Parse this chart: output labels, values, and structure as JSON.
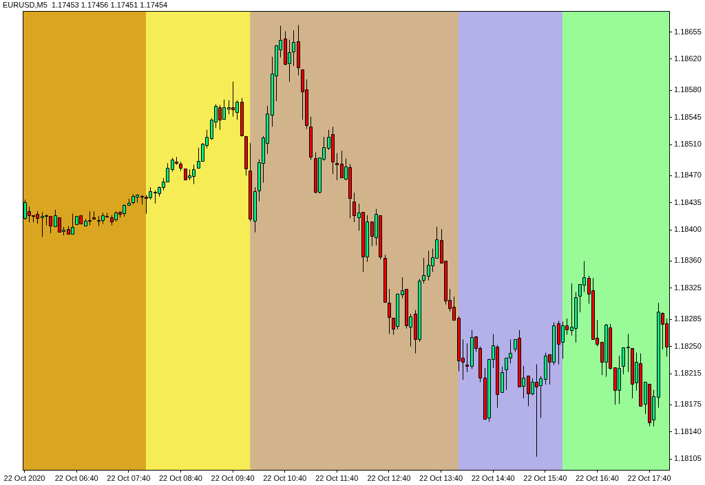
{
  "chart_data": {
    "type": "candlestick",
    "title": "EURUSD,M5  1.17453 1.17456 1.17451 1.17454",
    "x": [
      "2020-10-22T05:40",
      "2020-10-22T05:45",
      "2020-10-22T05:50",
      "2020-10-22T05:55",
      "2020-10-22T06:00",
      "2020-10-22T06:05",
      "2020-10-22T06:10",
      "2020-10-22T06:15",
      "2020-10-22T06:20",
      "2020-10-22T06:25",
      "2020-10-22T06:30",
      "2020-10-22T06:35",
      "2020-10-22T06:40",
      "2020-10-22T06:45",
      "2020-10-22T06:50",
      "2020-10-22T06:55",
      "2020-10-22T07:00",
      "2020-10-22T07:05",
      "2020-10-22T07:10",
      "2020-10-22T07:15",
      "2020-10-22T07:20",
      "2020-10-22T07:25",
      "2020-10-22T07:30",
      "2020-10-22T07:35",
      "2020-10-22T07:40",
      "2020-10-22T07:45",
      "2020-10-22T07:50",
      "2020-10-22T07:55",
      "2020-10-22T08:00",
      "2020-10-22T08:05",
      "2020-10-22T08:10",
      "2020-10-22T08:15",
      "2020-10-22T08:20",
      "2020-10-22T08:25",
      "2020-10-22T08:30",
      "2020-10-22T08:35",
      "2020-10-22T08:40",
      "2020-10-22T08:45",
      "2020-10-22T08:50",
      "2020-10-22T08:55",
      "2020-10-22T09:00",
      "2020-10-22T09:05",
      "2020-10-22T09:10",
      "2020-10-22T09:15",
      "2020-10-22T09:20",
      "2020-10-22T09:25",
      "2020-10-22T09:30",
      "2020-10-22T09:35",
      "2020-10-22T09:40",
      "2020-10-22T09:45",
      "2020-10-22T09:50",
      "2020-10-22T09:55",
      "2020-10-22T10:00",
      "2020-10-22T10:05",
      "2020-10-22T10:10",
      "2020-10-22T10:15",
      "2020-10-22T10:20",
      "2020-10-22T10:25",
      "2020-10-22T10:30",
      "2020-10-22T10:35",
      "2020-10-22T10:40",
      "2020-10-22T10:45",
      "2020-10-22T10:50",
      "2020-10-22T10:55",
      "2020-10-22T11:00",
      "2020-10-22T11:05",
      "2020-10-22T11:10",
      "2020-10-22T11:15",
      "2020-10-22T11:20",
      "2020-10-22T11:25",
      "2020-10-22T11:30",
      "2020-10-22T11:35",
      "2020-10-22T11:40",
      "2020-10-22T11:45",
      "2020-10-22T11:50",
      "2020-10-22T11:55",
      "2020-10-22T12:00",
      "2020-10-22T12:05",
      "2020-10-22T12:10",
      "2020-10-22T12:15",
      "2020-10-22T12:20",
      "2020-10-22T12:25",
      "2020-10-22T12:30",
      "2020-10-22T12:35",
      "2020-10-22T12:40",
      "2020-10-22T12:45",
      "2020-10-22T12:50",
      "2020-10-22T12:55",
      "2020-10-22T13:00",
      "2020-10-22T13:05",
      "2020-10-22T13:10",
      "2020-10-22T13:15",
      "2020-10-22T13:20",
      "2020-10-22T13:25",
      "2020-10-22T13:30",
      "2020-10-22T13:35",
      "2020-10-22T13:40",
      "2020-10-22T13:45",
      "2020-10-22T13:50",
      "2020-10-22T13:55",
      "2020-10-22T14:00",
      "2020-10-22T14:05",
      "2020-10-22T14:10",
      "2020-10-22T14:15",
      "2020-10-22T14:20",
      "2020-10-22T14:25",
      "2020-10-22T14:30",
      "2020-10-22T14:35",
      "2020-10-22T14:40",
      "2020-10-22T14:45",
      "2020-10-22T14:50",
      "2020-10-22T14:55",
      "2020-10-22T15:00",
      "2020-10-22T15:05",
      "2020-10-22T15:10",
      "2020-10-22T15:15",
      "2020-10-22T15:20",
      "2020-10-22T15:25",
      "2020-10-22T15:30",
      "2020-10-22T15:35",
      "2020-10-22T15:40",
      "2020-10-22T15:45",
      "2020-10-22T15:50",
      "2020-10-22T15:55",
      "2020-10-22T16:00",
      "2020-10-22T16:05",
      "2020-10-22T16:10",
      "2020-10-22T16:15",
      "2020-10-22T16:20",
      "2020-10-22T16:25",
      "2020-10-22T16:30",
      "2020-10-22T16:35",
      "2020-10-22T16:40",
      "2020-10-22T16:45",
      "2020-10-22T16:50",
      "2020-10-22T16:55",
      "2020-10-22T17:00",
      "2020-10-22T17:05",
      "2020-10-22T17:10",
      "2020-10-22T17:15",
      "2020-10-22T17:20",
      "2020-10-22T17:25",
      "2020-10-22T17:30",
      "2020-10-22T17:35",
      "2020-10-22T17:40",
      "2020-10-22T17:45",
      "2020-10-22T17:50",
      "2020-10-22T17:55",
      "2020-10-22T18:00"
    ],
    "ohlc": [
      [
        1.18416,
        1.18439,
        1.18413,
        1.18436
      ],
      [
        1.18424,
        1.1843,
        1.1841,
        1.18419
      ],
      [
        1.18419,
        1.18419,
        1.1841,
        1.18418
      ],
      [
        1.18421,
        1.18424,
        1.18408,
        1.18416
      ],
      [
        1.18416,
        1.18423,
        1.18391,
        1.18418
      ],
      [
        1.18419,
        1.1842,
        1.18406,
        1.18419
      ],
      [
        1.18418,
        1.18418,
        1.18396,
        1.18406
      ],
      [
        1.18405,
        1.18426,
        1.18405,
        1.18419
      ],
      [
        1.18416,
        1.18416,
        1.18397,
        1.18397
      ],
      [
        1.18398,
        1.18404,
        1.18393,
        1.184
      ],
      [
        1.18401,
        1.18405,
        1.18394,
        1.18395
      ],
      [
        1.18395,
        1.18421,
        1.18395,
        1.18404
      ],
      [
        1.18407,
        1.18418,
        1.18407,
        1.18418
      ],
      [
        1.18419,
        1.18419,
        1.18408,
        1.18408
      ],
      [
        1.18406,
        1.18414,
        1.18405,
        1.18412
      ],
      [
        1.18413,
        1.18424,
        1.18406,
        1.18412
      ],
      [
        1.18416,
        1.18424,
        1.18413,
        1.18414
      ],
      [
        1.18413,
        1.18418,
        1.18405,
        1.18413
      ],
      [
        1.18413,
        1.18422,
        1.18408,
        1.18419
      ],
      [
        1.18418,
        1.18422,
        1.18416,
        1.18418
      ],
      [
        1.18416,
        1.18419,
        1.18406,
        1.18411
      ],
      [
        1.18413,
        1.18424,
        1.18411,
        1.18422
      ],
      [
        1.18423,
        1.18424,
        1.18416,
        1.1842
      ],
      [
        1.18421,
        1.18433,
        1.18417,
        1.18432
      ],
      [
        1.18432,
        1.1844,
        1.18431,
        1.18435
      ],
      [
        1.18436,
        1.18446,
        1.18433,
        1.18444
      ],
      [
        1.18442,
        1.18446,
        1.18435,
        1.18445
      ],
      [
        1.18444,
        1.18445,
        1.18433,
        1.18444
      ],
      [
        1.18443,
        1.18445,
        1.18421,
        1.18441
      ],
      [
        1.18442,
        1.18455,
        1.18439,
        1.1845
      ],
      [
        1.18449,
        1.18451,
        1.18434,
        1.18449
      ],
      [
        1.18447,
        1.18456,
        1.18443,
        1.18455
      ],
      [
        1.18455,
        1.18467,
        1.18451,
        1.18462
      ],
      [
        1.18462,
        1.18486,
        1.18462,
        1.1848
      ],
      [
        1.18479,
        1.18493,
        1.18475,
        1.18491
      ],
      [
        1.18488,
        1.18494,
        1.18484,
        1.18486
      ],
      [
        1.18485,
        1.18488,
        1.18476,
        1.1848
      ],
      [
        1.18479,
        1.18479,
        1.18464,
        1.18465
      ],
      [
        1.18467,
        1.18478,
        1.18464,
        1.1847
      ],
      [
        1.18469,
        1.18484,
        1.18459,
        1.18478
      ],
      [
        1.1848,
        1.18506,
        1.1848,
        1.18489
      ],
      [
        1.18489,
        1.18512,
        1.18489,
        1.18511
      ],
      [
        1.18509,
        1.18529,
        1.18505,
        1.1852
      ],
      [
        1.18518,
        1.18544,
        1.18516,
        1.18542
      ],
      [
        1.1854,
        1.18562,
        1.18531,
        1.1856
      ],
      [
        1.18558,
        1.18561,
        1.18529,
        1.18542
      ],
      [
        1.18543,
        1.18568,
        1.18542,
        1.18558
      ],
      [
        1.18556,
        1.18567,
        1.18549,
        1.18558
      ],
      [
        1.18558,
        1.18591,
        1.18546,
        1.18555
      ],
      [
        1.18552,
        1.18567,
        1.18542,
        1.18565
      ],
      [
        1.18565,
        1.1857,
        1.18522,
        1.18522
      ],
      [
        1.18521,
        1.18521,
        1.1847,
        1.18479
      ],
      [
        1.18476,
        1.18512,
        1.18411,
        1.18414
      ],
      [
        1.18412,
        1.18455,
        1.18397,
        1.1845
      ],
      [
        1.18451,
        1.18491,
        1.18437,
        1.18487
      ],
      [
        1.18486,
        1.18521,
        1.18461,
        1.18519
      ],
      [
        1.18512,
        1.1856,
        1.18498,
        1.1855
      ],
      [
        1.18548,
        1.18623,
        1.18533,
        1.18601
      ],
      [
        1.18599,
        1.18638,
        1.18566,
        1.18638
      ],
      [
        1.18633,
        1.18663,
        1.18622,
        1.18645
      ],
      [
        1.18647,
        1.18656,
        1.18612,
        1.18614
      ],
      [
        1.18615,
        1.18645,
        1.18591,
        1.18629
      ],
      [
        1.1863,
        1.18657,
        1.18611,
        1.18642
      ],
      [
        1.18643,
        1.18664,
        1.18599,
        1.18609
      ],
      [
        1.18607,
        1.18607,
        1.18542,
        1.18579
      ],
      [
        1.18581,
        1.18594,
        1.1853,
        1.18535
      ],
      [
        1.18533,
        1.18546,
        1.1849,
        1.18494
      ],
      [
        1.18492,
        1.185,
        1.18447,
        1.18449
      ],
      [
        1.18449,
        1.18493,
        1.18447,
        1.18493
      ],
      [
        1.18492,
        1.1852,
        1.18489,
        1.18507
      ],
      [
        1.18506,
        1.18529,
        1.18503,
        1.1852
      ],
      [
        1.18523,
        1.18533,
        1.18472,
        1.18488
      ],
      [
        1.18486,
        1.18499,
        1.18464,
        1.18484
      ],
      [
        1.18485,
        1.18502,
        1.18467,
        1.18467
      ],
      [
        1.18466,
        1.18492,
        1.18464,
        1.18482
      ],
      [
        1.18481,
        1.18485,
        1.18415,
        1.18441
      ],
      [
        1.18437,
        1.18448,
        1.1841,
        1.18419
      ],
      [
        1.18416,
        1.18434,
        1.18399,
        1.18422
      ],
      [
        1.18423,
        1.18423,
        1.18346,
        1.18365
      ],
      [
        1.18366,
        1.18419,
        1.18359,
        1.18411
      ],
      [
        1.18411,
        1.18411,
        1.18379,
        1.18392
      ],
      [
        1.18391,
        1.18427,
        1.1838,
        1.18421
      ],
      [
        1.18419,
        1.18419,
        1.18362,
        1.18366
      ],
      [
        1.18364,
        1.18368,
        1.18307,
        1.18307
      ],
      [
        1.18306,
        1.18324,
        1.18266,
        1.18287
      ],
      [
        1.18287,
        1.18287,
        1.18265,
        1.18273
      ],
      [
        1.18276,
        1.18318,
        1.18272,
        1.18318
      ],
      [
        1.18317,
        1.18339,
        1.18312,
        1.18322
      ],
      [
        1.18324,
        1.18324,
        1.18273,
        1.18277
      ],
      [
        1.18276,
        1.18292,
        1.1825,
        1.18289
      ],
      [
        1.18292,
        1.18297,
        1.18241,
        1.18259
      ],
      [
        1.1826,
        1.18337,
        1.18256,
        1.18335
      ],
      [
        1.18336,
        1.18364,
        1.18331,
        1.18342
      ],
      [
        1.18341,
        1.18373,
        1.18335,
        1.18355
      ],
      [
        1.18354,
        1.18376,
        1.18346,
        1.18365
      ],
      [
        1.18364,
        1.18404,
        1.18364,
        1.18388
      ],
      [
        1.18387,
        1.18401,
        1.18357,
        1.18358
      ],
      [
        1.1836,
        1.1836,
        1.18304,
        1.18309
      ],
      [
        1.1831,
        1.18324,
        1.18295,
        1.18299
      ],
      [
        1.18301,
        1.18314,
        1.18284,
        1.18284
      ],
      [
        1.18287,
        1.18289,
        1.18218,
        1.18232
      ],
      [
        1.18235,
        1.18259,
        1.18207,
        1.1823
      ],
      [
        1.18227,
        1.18254,
        1.18217,
        1.18225
      ],
      [
        1.18225,
        1.18271,
        1.18221,
        1.18262
      ],
      [
        1.18263,
        1.18263,
        1.18243,
        1.18248
      ],
      [
        1.18248,
        1.1825,
        1.18204,
        1.1821
      ],
      [
        1.1821,
        1.18222,
        1.18156,
        1.18157
      ],
      [
        1.18159,
        1.18234,
        1.18153,
        1.18234
      ],
      [
        1.18233,
        1.18266,
        1.18222,
        1.18251
      ],
      [
        1.1825,
        1.18252,
        1.18171,
        1.18189
      ],
      [
        1.18191,
        1.18224,
        1.18191,
        1.18217
      ],
      [
        1.1822,
        1.18235,
        1.18194,
        1.18235
      ],
      [
        1.18236,
        1.18259,
        1.18228,
        1.18242
      ],
      [
        1.18247,
        1.18259,
        1.18243,
        1.18259
      ],
      [
        1.18261,
        1.18271,
        1.18198,
        1.18198
      ],
      [
        1.18199,
        1.18225,
        1.18183,
        1.1821
      ],
      [
        1.18212,
        1.18212,
        1.18173,
        1.18189
      ],
      [
        1.18189,
        1.18209,
        1.18187,
        1.18204
      ],
      [
        1.18204,
        1.18227,
        1.18108,
        1.18198
      ],
      [
        1.182,
        1.18212,
        1.18158,
        1.18209
      ],
      [
        1.18208,
        1.18242,
        1.18201,
        1.18238
      ],
      [
        1.1824,
        1.1824,
        1.18201,
        1.1823
      ],
      [
        1.1823,
        1.18281,
        1.18226,
        1.18277
      ],
      [
        1.1828,
        1.18283,
        1.18227,
        1.18253
      ],
      [
        1.18256,
        1.18282,
        1.18234,
        1.18277
      ],
      [
        1.18277,
        1.18286,
        1.18265,
        1.18272
      ],
      [
        1.18271,
        1.18331,
        1.18264,
        1.18275
      ],
      [
        1.18273,
        1.1832,
        1.18255,
        1.18313
      ],
      [
        1.18315,
        1.1833,
        1.18294,
        1.1833
      ],
      [
        1.18329,
        1.1836,
        1.1832,
        1.18339
      ],
      [
        1.18338,
        1.18341,
        1.18305,
        1.18318
      ],
      [
        1.18322,
        1.18338,
        1.18259,
        1.18259
      ],
      [
        1.18261,
        1.18284,
        1.1825,
        1.18253
      ],
      [
        1.18256,
        1.18256,
        1.18213,
        1.1823
      ],
      [
        1.1823,
        1.18279,
        1.18211,
        1.18278
      ],
      [
        1.18274,
        1.18279,
        1.1822,
        1.18222
      ],
      [
        1.18223,
        1.18223,
        1.18175,
        1.18194
      ],
      [
        1.18194,
        1.18238,
        1.18176,
        1.18222
      ],
      [
        1.18225,
        1.18249,
        1.18214,
        1.18249
      ],
      [
        1.1825,
        1.18266,
        1.18217,
        1.18249
      ],
      [
        1.18248,
        1.18248,
        1.18183,
        1.18202
      ],
      [
        1.18203,
        1.18242,
        1.18193,
        1.1823
      ],
      [
        1.18228,
        1.18241,
        1.18173,
        1.18173
      ],
      [
        1.18176,
        1.18204,
        1.18163,
        1.18204
      ],
      [
        1.18202,
        1.18202,
        1.18147,
        1.18152
      ],
      [
        1.18156,
        1.18194,
        1.18147,
        1.18186
      ],
      [
        1.18185,
        1.18306,
        1.18171,
        1.18295
      ],
      [
        1.18293,
        1.18294,
        1.18246,
        1.18279
      ],
      [
        1.1828,
        1.18286,
        1.18237,
        1.1825
      ]
    ],
    "colors": [
      "#00f084",
      "#f00000",
      "#f00000",
      "#f00000",
      "#00f084",
      "#00f084",
      "#f00000",
      "#00f084",
      "#f00000",
      "#00f084",
      "#f00000",
      "#00f084",
      "#00f084",
      "#f00000",
      "#00f084",
      "#f00000",
      "#f00000",
      "#00f084",
      "#00f084",
      "#00f084",
      "#f00000",
      "#00f084",
      "#f00000",
      "#00f084",
      "#00f084",
      "#00f084",
      "#00f084",
      "#00f084",
      "#f00000",
      "#00f084",
      "#00f084",
      "#00f084",
      "#00f084",
      "#00f084",
      "#00f084",
      "#f00000",
      "#f00000",
      "#f00000",
      "#00f084",
      "#00f084",
      "#00f084",
      "#00f084",
      "#00f084",
      "#00f084",
      "#00f084",
      "#f00000",
      "#00f084",
      "#00f084",
      "#f00000",
      "#00f084",
      "#f00000",
      "#f00000",
      "#f00000",
      "#00f084",
      "#00f084",
      "#00f084",
      "#00f084",
      "#00f084",
      "#00f084",
      "#00f084",
      "#f00000",
      "#00f084",
      "#00f084",
      "#f00000",
      "#f00000",
      "#f00000",
      "#f00000",
      "#f00000",
      "#00f084",
      "#00f084",
      "#00f084",
      "#f00000",
      "#f00000",
      "#f00000",
      "#00f084",
      "#f00000",
      "#f00000",
      "#00f084",
      "#f00000",
      "#00f084",
      "#f00000",
      "#00f084",
      "#f00000",
      "#f00000",
      "#f00000",
      "#f00000",
      "#00f084",
      "#00f084",
      "#f00000",
      "#00f084",
      "#f00000",
      "#00f084",
      "#00f084",
      "#00f084",
      "#00f084",
      "#00f084",
      "#f00000",
      "#f00000",
      "#f00000",
      "#f00000",
      "#f00000",
      "#f00000",
      "#f00000",
      "#00f084",
      "#f00000",
      "#f00000",
      "#f00000",
      "#00f084",
      "#00f084",
      "#f00000",
      "#00f084",
      "#00f084",
      "#00f084",
      "#00f084",
      "#f00000",
      "#00f084",
      "#f00000",
      "#00f084",
      "#f00000",
      "#00f084",
      "#00f084",
      "#f00000",
      "#00f084",
      "#f00000",
      "#00f084",
      "#f00000",
      "#00f084",
      "#00f084",
      "#00f084",
      "#00f084",
      "#f00000",
      "#f00000",
      "#f00000",
      "#f00000",
      "#00f084",
      "#f00000",
      "#f00000",
      "#00f084",
      "#00f084",
      "#f00000",
      "#f00000",
      "#00f084",
      "#f00000",
      "#00f084",
      "#f00000",
      "#00f084",
      "#00f084",
      "#f00000",
      "#f00000"
    ],
    "xlim": [
      "2020-10-22T05:38",
      "2020-10-22T18:03"
    ],
    "xticks": [
      {
        "value": "2020-10-22T05:40",
        "label": "22 Oct 2020"
      },
      {
        "value": "2020-10-22T06:40",
        "label": "22 Oct 06:40"
      },
      {
        "value": "2020-10-22T07:40",
        "label": "22 Oct 07:40"
      },
      {
        "value": "2020-10-22T08:40",
        "label": "22 Oct 08:40"
      },
      {
        "value": "2020-10-22T09:40",
        "label": "22 Oct 09:40"
      },
      {
        "value": "2020-10-22T10:40",
        "label": "22 Oct 10:40"
      },
      {
        "value": "2020-10-22T11:40",
        "label": "22 Oct 11:40"
      },
      {
        "value": "2020-10-22T12:40",
        "label": "22 Oct 12:40"
      },
      {
        "value": "2020-10-22T13:40",
        "label": "22 Oct 13:40"
      },
      {
        "value": "2020-10-22T14:40",
        "label": "22 Oct 14:40"
      },
      {
        "value": "2020-10-22T15:40",
        "label": "22 Oct 15:40"
      },
      {
        "value": "2020-10-22T16:40",
        "label": "22 Oct 16:40"
      },
      {
        "value": "2020-10-22T17:40",
        "label": "22 Oct 17:40"
      }
    ],
    "ylim": [
      1.18091,
      1.18682
    ],
    "yticks": [
      1.18105,
      {
        "value": 1.1814,
        "label": "1.18140"
      },
      1.18175,
      1.18215,
      {
        "value": 1.1825,
        "label": "1.18250"
      },
      1.18285,
      1.18325,
      {
        "value": 1.1836,
        "label": "1.18360"
      },
      {
        "value": 1.184,
        "label": "1.18400"
      },
      1.18435,
      {
        "value": 1.1847,
        "label": "1.18470"
      },
      {
        "value": 1.1851,
        "label": "1.18510"
      },
      1.18545,
      {
        "value": 1.1858,
        "label": "1.18580"
      },
      {
        "value": 1.1862,
        "label": "1.18620"
      },
      1.18655
    ],
    "bands": [
      {
        "axis": "x",
        "from": "2020-10-22T08:00",
        "to": "2020-10-22T16:00",
        "color": "#d2b48c"
      },
      {
        "axis": "x",
        "from": "2020-10-22T05:38",
        "to": "2020-10-22T08:00",
        "color": "#daa520"
      },
      {
        "axis": "x",
        "from": "2020-10-22T08:00",
        "to": "2020-10-22T10:00",
        "color": "#f6ec56"
      },
      {
        "axis": "x",
        "from": "2020-10-22T14:00",
        "to": "2020-10-22T16:00",
        "color": "#b3b0ea"
      },
      {
        "axis": "x",
        "from": "2020-10-22T16:00",
        "to": "2020-10-22T18:03",
        "color": "#98fb98"
      }
    ]
  }
}
